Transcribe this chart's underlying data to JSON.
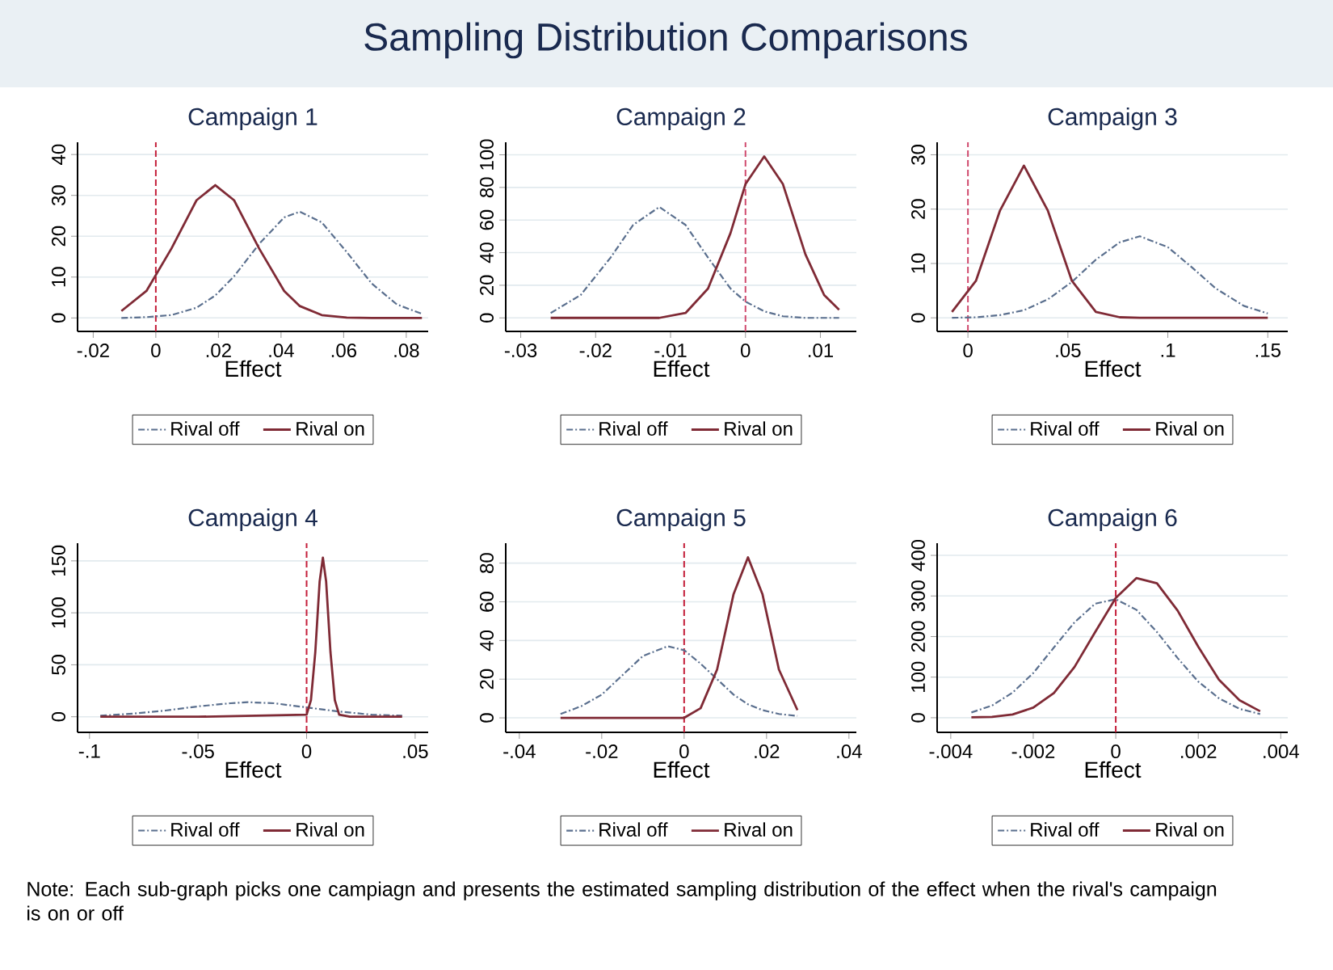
{
  "chart_data": [
    {
      "type": "other",
      "title": "Sampling Distribution Comparisons",
      "annotations": [
        "Note: Each sub-graph picks one campiagn and presents the estimated sampling distribution of the effect when the rival's campaign is on or off"
      ]
    },
    {
      "type": "line",
      "title": "Campaign 1",
      "xlabel": "Effect",
      "xlim": [
        -0.025,
        0.087
      ],
      "ylim": [
        -3.3,
        43
      ],
      "xticks": [
        {
          "value": -0.02,
          "label": "-.02"
        },
        0,
        {
          "value": 0.02,
          "label": ".02"
        },
        {
          "value": 0.04,
          "label": ".04"
        },
        {
          "value": 0.06,
          "label": ".06"
        },
        {
          "value": 0.08,
          "label": ".08"
        }
      ],
      "yticks": [
        0,
        10,
        20,
        30,
        40
      ],
      "grid": "y",
      "legend": "bottom",
      "ref_lines": [
        {
          "axis": "x",
          "value": 0,
          "color": "#c41e3a",
          "line_style": "dashed"
        }
      ],
      "series": [
        {
          "name": "Rival off",
          "color": "#5a6f8e",
          "line_style": "dashed",
          "x": [
            -0.011,
            -0.003,
            0.005,
            0.013,
            0.019,
            0.025,
            0.033,
            0.041,
            0.046,
            0.053,
            0.061,
            0.069,
            0.077,
            0.085
          ],
          "values": [
            0.0,
            0.2,
            0.7,
            2.5,
            5.5,
            10.2,
            18.1,
            24.6,
            26,
            23.4,
            16.1,
            8.4,
            3.3,
            1.0
          ]
        },
        {
          "name": "Rival on",
          "color": "#7f2a35",
          "line_style": "solid",
          "x": [
            -0.011,
            -0.003,
            0.005,
            0.013,
            0.019,
            0.025,
            0.033,
            0.041,
            0.046,
            0.053,
            0.061,
            0.069,
            0.077,
            0.085
          ],
          "values": [
            1.7,
            6.6,
            17,
            28.8,
            32.5,
            28.8,
            17,
            6.6,
            2.9,
            0.7,
            0.1,
            0,
            0,
            0
          ]
        }
      ]
    },
    {
      "type": "line",
      "title": "Campaign 2",
      "xlabel": "Effect",
      "xlim": [
        -0.032,
        0.0148
      ],
      "ylim": [
        -8.3,
        107.7
      ],
      "xticks": [
        {
          "value": -0.03,
          "label": "-.03"
        },
        {
          "value": -0.02,
          "label": "-.02"
        },
        {
          "value": -0.01,
          "label": "-.01"
        },
        0,
        {
          "value": 0.01,
          "label": ".01"
        }
      ],
      "yticks": [
        0,
        20,
        40,
        60,
        80,
        100
      ],
      "grid": "y",
      "legend": "bottom",
      "ref_lines": [
        {
          "axis": "x",
          "value": 0,
          "color": "#d04a6e",
          "line_style": "dashed"
        }
      ],
      "series": [
        {
          "name": "Rival off",
          "color": "#5a6f8e",
          "line_style": "dashed",
          "x": [
            -0.026,
            -0.022,
            -0.018,
            -0.015,
            -0.0115,
            -0.008,
            -0.005,
            -0.002,
            0,
            0.0025,
            0.005,
            0.008,
            0.0105,
            0.0125
          ],
          "values": [
            3,
            14,
            37,
            57,
            68,
            57,
            37,
            18,
            10,
            4,
            1,
            0,
            0,
            0
          ]
        },
        {
          "name": "Rival on",
          "color": "#7f2a35",
          "line_style": "solid",
          "x": [
            -0.026,
            -0.022,
            -0.018,
            -0.015,
            -0.0115,
            -0.008,
            -0.005,
            -0.002,
            0,
            0.0025,
            0.005,
            0.008,
            0.0105,
            0.0125
          ],
          "values": [
            0,
            0,
            0,
            0,
            0,
            3,
            18,
            52,
            82,
            99,
            82,
            39,
            14,
            5
          ]
        }
      ]
    },
    {
      "type": "line",
      "title": "Campaign 3",
      "xlabel": "Effect",
      "xlim": [
        -0.0154,
        0.16
      ],
      "ylim": [
        -2.5,
        32.3
      ],
      "xticks": [
        0,
        {
          "value": 0.05,
          "label": ".05"
        },
        {
          "value": 0.1,
          "label": ".1"
        },
        {
          "value": 0.15,
          "label": ".15"
        }
      ],
      "yticks": [
        0,
        10,
        20,
        30
      ],
      "grid": "y",
      "legend": "bottom",
      "ref_lines": [
        {
          "axis": "x",
          "value": 0,
          "color": "#d04a6e",
          "line_style": "dashed"
        }
      ],
      "series": [
        {
          "name": "Rival off",
          "color": "#5a6f8e",
          "line_style": "dashed",
          "x": [
            -0.008,
            0.004,
            0.016,
            0.028,
            0.04,
            0.052,
            0.064,
            0.076,
            0.086,
            0.1,
            0.112,
            0.124,
            0.138,
            0.15
          ],
          "values": [
            0.0,
            0.1,
            0.5,
            1.4,
            3.4,
            6.6,
            10.7,
            13.9,
            15,
            13,
            9.3,
            5.4,
            2.2,
            0.8
          ]
        },
        {
          "name": "Rival on",
          "color": "#7f2a35",
          "line_style": "solid",
          "x": [
            -0.008,
            0.004,
            0.016,
            0.028,
            0.04,
            0.052,
            0.064,
            0.076,
            0.086,
            0.1,
            0.112,
            0.124,
            0.138,
            0.15
          ],
          "values": [
            1.1,
            6.8,
            19.7,
            28,
            19.7,
            6.8,
            1.1,
            0.1,
            0,
            0,
            0,
            0,
            0,
            0
          ]
        }
      ]
    },
    {
      "type": "line",
      "title": "Campaign 4",
      "xlabel": "Effect",
      "xlim": [
        -0.1055,
        0.056
      ],
      "ylim": [
        -15,
        167
      ],
      "xticks": [
        {
          "value": -0.1,
          "label": "-.1"
        },
        {
          "value": -0.05,
          "label": "-.05"
        },
        0,
        {
          "value": 0.05,
          "label": ".05"
        }
      ],
      "yticks": [
        0,
        50,
        100,
        150
      ],
      "grid": "y",
      "legend": "bottom",
      "ref_lines": [
        {
          "axis": "x",
          "value": 0,
          "color": "#c41e3a",
          "line_style": "dashed"
        }
      ],
      "series": [
        {
          "name": "Rival off",
          "color": "#5a6f8e",
          "line_style": "dashed",
          "x": [
            -0.095,
            -0.08,
            -0.065,
            -0.05,
            -0.035,
            -0.027,
            -0.015,
            0,
            0.015,
            0.03,
            0.044
          ],
          "values": [
            1,
            3,
            6,
            10,
            13,
            14,
            13,
            9,
            5,
            2,
            1
          ]
        },
        {
          "name": "Rival on",
          "color": "#7f2a35",
          "line_style": "solid",
          "x": [
            -0.095,
            -0.05,
            0,
            0.002,
            0.004,
            0.006,
            0.0075,
            0.009,
            0.011,
            0.013,
            0.015,
            0.02,
            0.044
          ],
          "values": [
            0,
            0,
            2,
            16,
            62,
            130,
            153,
            130,
            62,
            16,
            2,
            0,
            0
          ]
        }
      ]
    },
    {
      "type": "line",
      "title": "Campaign 5",
      "xlabel": "Effect",
      "xlim": [
        -0.0433,
        0.0418
      ],
      "ylim": [
        -7.5,
        90.3
      ],
      "xticks": [
        {
          "value": -0.04,
          "label": "-.04"
        },
        {
          "value": -0.02,
          "label": "-.02"
        },
        0,
        {
          "value": 0.02,
          "label": ".02"
        },
        {
          "value": 0.04,
          "label": ".04"
        }
      ],
      "yticks": [
        0,
        20,
        40,
        60,
        80
      ],
      "grid": "y",
      "legend": "bottom",
      "ref_lines": [
        {
          "axis": "x",
          "value": 0,
          "color": "#c41e3a",
          "line_style": "dashed"
        }
      ],
      "series": [
        {
          "name": "Rival off",
          "color": "#5a6f8e",
          "line_style": "dashed",
          "x": [
            -0.03,
            -0.025,
            -0.02,
            -0.015,
            -0.01,
            -0.004,
            0,
            0.004,
            0.008,
            0.012,
            0.0155,
            0.019,
            0.023,
            0.0275
          ],
          "values": [
            2,
            6,
            12,
            22,
            32,
            37,
            35,
            28,
            20,
            12,
            7,
            4,
            2,
            1
          ]
        },
        {
          "name": "Rival on",
          "color": "#7f2a35",
          "line_style": "solid",
          "x": [
            -0.03,
            -0.025,
            -0.02,
            -0.015,
            -0.01,
            -0.004,
            0,
            0.004,
            0.008,
            0.012,
            0.0155,
            0.019,
            0.023,
            0.0275
          ],
          "values": [
            0,
            0,
            0,
            0,
            0,
            0,
            0,
            5,
            25,
            64,
            83,
            64,
            25,
            4
          ]
        }
      ]
    },
    {
      "type": "line",
      "title": "Campaign 6",
      "xlabel": "Effect",
      "xlim": [
        -0.00433,
        0.00417
      ],
      "ylim": [
        -36,
        430
      ],
      "xticks": [
        {
          "value": -0.004,
          "label": "-.004"
        },
        {
          "value": -0.002,
          "label": "-.002"
        },
        0,
        {
          "value": 0.002,
          "label": ".002"
        },
        {
          "value": 0.004,
          "label": ".004"
        }
      ],
      "yticks": [
        0,
        100,
        200,
        300,
        400
      ],
      "grid": "y",
      "legend": "bottom",
      "ref_lines": [
        {
          "axis": "x",
          "value": 0,
          "color": "#c41e3a",
          "line_style": "dashed"
        }
      ],
      "series": [
        {
          "name": "Rival off",
          "color": "#5a6f8e",
          "line_style": "dashed",
          "x": [
            -0.0035,
            -0.003,
            -0.0025,
            -0.002,
            -0.0015,
            -0.001,
            -0.0005,
            0,
            0.0005,
            0.001,
            0.0015,
            0.002,
            0.0025,
            0.003,
            0.0035
          ],
          "values": [
            13,
            30,
            62,
            110,
            173,
            235,
            281,
            292,
            266,
            211,
            147,
            89,
            48,
            22,
            9
          ]
        },
        {
          "name": "Rival on",
          "color": "#7f2a35",
          "line_style": "solid",
          "x": [
            -0.0035,
            -0.003,
            -0.0025,
            -0.002,
            -0.0015,
            -0.001,
            -0.0005,
            0,
            0.0005,
            0.001,
            0.0015,
            0.002,
            0.0025,
            0.003,
            0.0035
          ],
          "values": [
            1,
            2,
            8,
            25,
            61,
            125,
            211,
            295,
            344,
            331,
            264,
            175,
            94,
            43,
            16
          ]
        }
      ]
    }
  ]
}
